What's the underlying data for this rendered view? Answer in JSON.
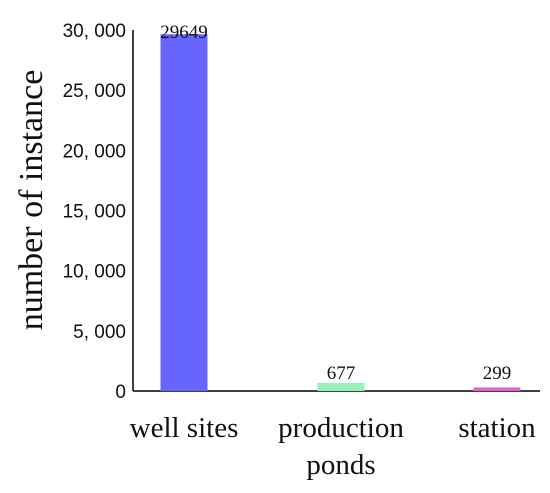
{
  "chart_data": {
    "type": "bar",
    "categories": [
      "well sites",
      "production ponds",
      "station"
    ],
    "category_lines": [
      [
        "well sites"
      ],
      [
        "production",
        "ponds"
      ],
      [
        "station"
      ]
    ],
    "values": [
      29649,
      677,
      299
    ],
    "data_labels": [
      "29649",
      "677",
      "299"
    ],
    "bar_colors": [
      "#6666ff",
      "#99f0b8",
      "#dd66cc"
    ],
    "ylabel": "number of instance",
    "xlabel": "",
    "ylim": [
      0,
      30000
    ],
    "yticks": [
      0,
      5000,
      10000,
      15000,
      20000,
      25000,
      30000
    ],
    "ytick_labels": [
      "0",
      "5, 000",
      "10, 000",
      "15, 000",
      "20, 000",
      "25, 000",
      "30, 000"
    ],
    "grid": false,
    "legend": "none"
  }
}
